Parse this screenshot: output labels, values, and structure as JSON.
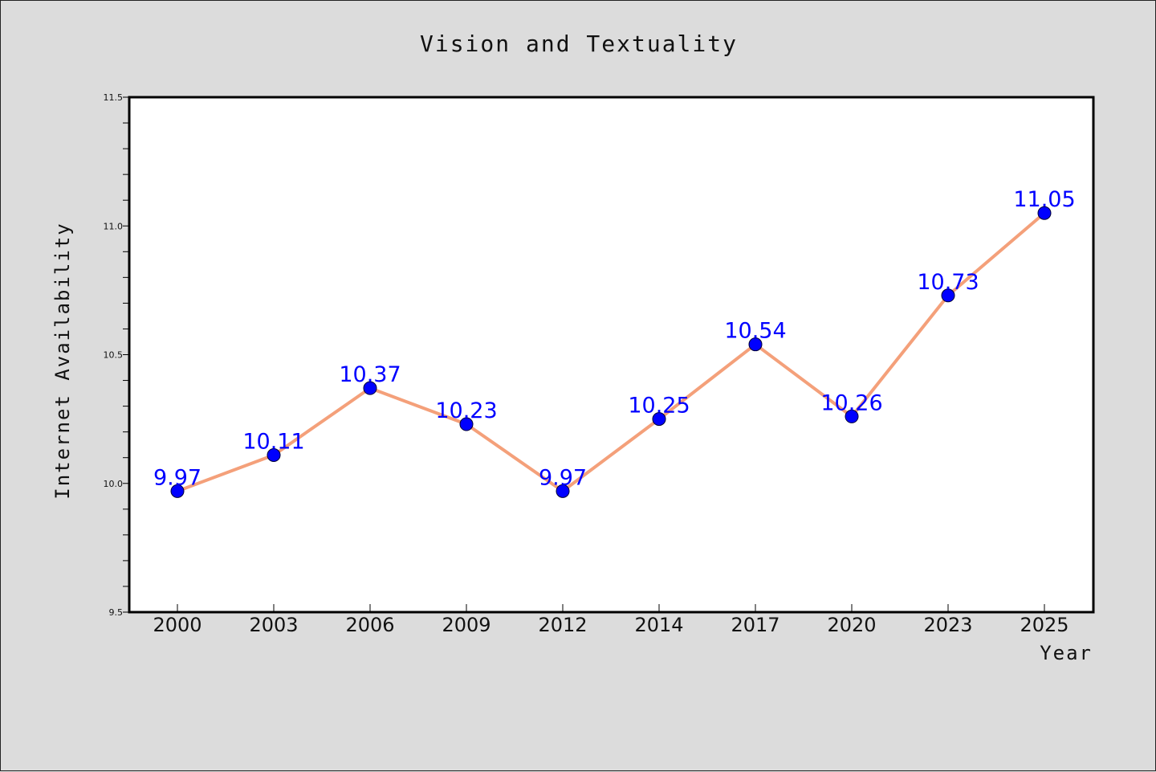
{
  "chart_data": {
    "type": "line",
    "title": "Vision and Textuality",
    "xlabel": "Year",
    "ylabel": "Internet Availability",
    "categories": [
      "2000",
      "2003",
      "2006",
      "2009",
      "2012",
      "2014",
      "2017",
      "2020",
      "2023",
      "2025"
    ],
    "series": [
      {
        "values": [
          9.97,
          10.11,
          10.37,
          10.23,
          9.97,
          10.25,
          10.54,
          10.26,
          10.73,
          11.05
        ]
      }
    ],
    "data_labels": [
      "9.97",
      "10.11",
      "10.37",
      "10.23",
      "9.97",
      "10.25",
      "10.54",
      "10.26",
      "10.73",
      "11.05"
    ],
    "ylim": [
      9.5,
      11.5
    ],
    "yticks": [
      "9.5",
      "10.0",
      "10.5",
      "11.0",
      "11.5"
    ],
    "grid": false,
    "colors": {
      "background": "#dcdcdc",
      "plot_background": "#ffffff",
      "line": "#f4a07a",
      "marker": "#0000ff",
      "data_label": "#0000ff"
    }
  }
}
